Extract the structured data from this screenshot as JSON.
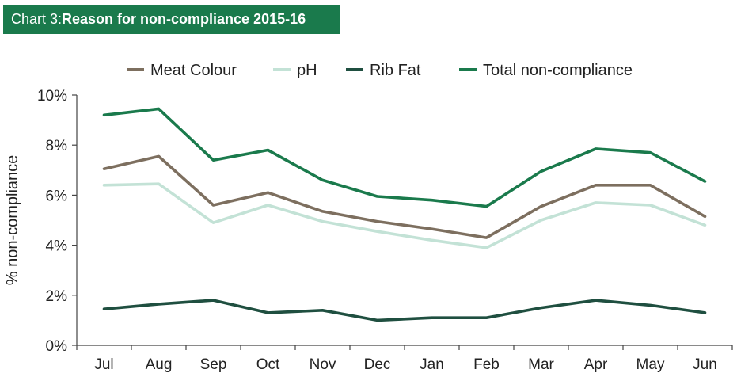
{
  "header": {
    "prefix": "Chart 3: ",
    "title": "Reason for non-compliance 2015-16"
  },
  "chart_data": {
    "type": "line",
    "ylabel": "% non-compliance",
    "xlabel": "",
    "ylim": [
      0,
      10
    ],
    "yticks": [
      "0%",
      "2%",
      "4%",
      "6%",
      "8%",
      "10%"
    ],
    "categories": [
      "Jul",
      "Aug",
      "Sep",
      "Oct",
      "Nov",
      "Dec",
      "Jan",
      "Feb",
      "Mar",
      "Apr",
      "May",
      "Jun"
    ],
    "legend_position": "top",
    "grid": false,
    "series": [
      {
        "name": "Meat Colour",
        "color": "#7d6f5f",
        "values": [
          7.05,
          7.55,
          5.6,
          6.1,
          5.35,
          4.95,
          4.65,
          4.3,
          5.55,
          6.4,
          6.4,
          5.15
        ]
      },
      {
        "name": "pH",
        "color": "#c3e2d6",
        "values": [
          6.4,
          6.45,
          4.9,
          5.6,
          4.95,
          4.55,
          4.2,
          3.9,
          5.0,
          5.7,
          5.6,
          4.8
        ]
      },
      {
        "name": "Rib Fat",
        "color": "#1f4f40",
        "values": [
          1.45,
          1.65,
          1.8,
          1.3,
          1.4,
          1.0,
          1.1,
          1.1,
          1.5,
          1.8,
          1.6,
          1.3
        ]
      },
      {
        "name": "Total non-compliance",
        "color": "#1a7a4c",
        "values": [
          9.2,
          9.45,
          7.4,
          7.8,
          6.6,
          5.95,
          5.8,
          5.55,
          6.95,
          7.85,
          7.7,
          6.55
        ]
      }
    ]
  }
}
